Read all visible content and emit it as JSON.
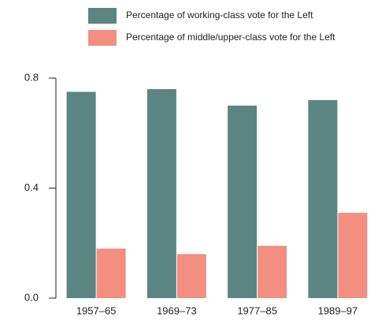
{
  "chart_data": {
    "type": "bar",
    "categories": [
      "1957–65",
      "1969–73",
      "1977–85",
      "1989–97"
    ],
    "series": [
      {
        "name": "Percentage of working-class vote for the Left",
        "color": "#5b8580",
        "values": [
          0.75,
          0.76,
          0.7,
          0.72
        ]
      },
      {
        "name": "Percentage of middle/upper-class vote for the Left",
        "color": "#f28f80",
        "values": [
          0.18,
          0.16,
          0.19,
          0.31
        ]
      }
    ],
    "ylim": [
      0,
      0.8
    ],
    "yticks": [
      {
        "value": 0,
        "label": "0.0"
      },
      0.4,
      0.8
    ],
    "legend": "top"
  }
}
